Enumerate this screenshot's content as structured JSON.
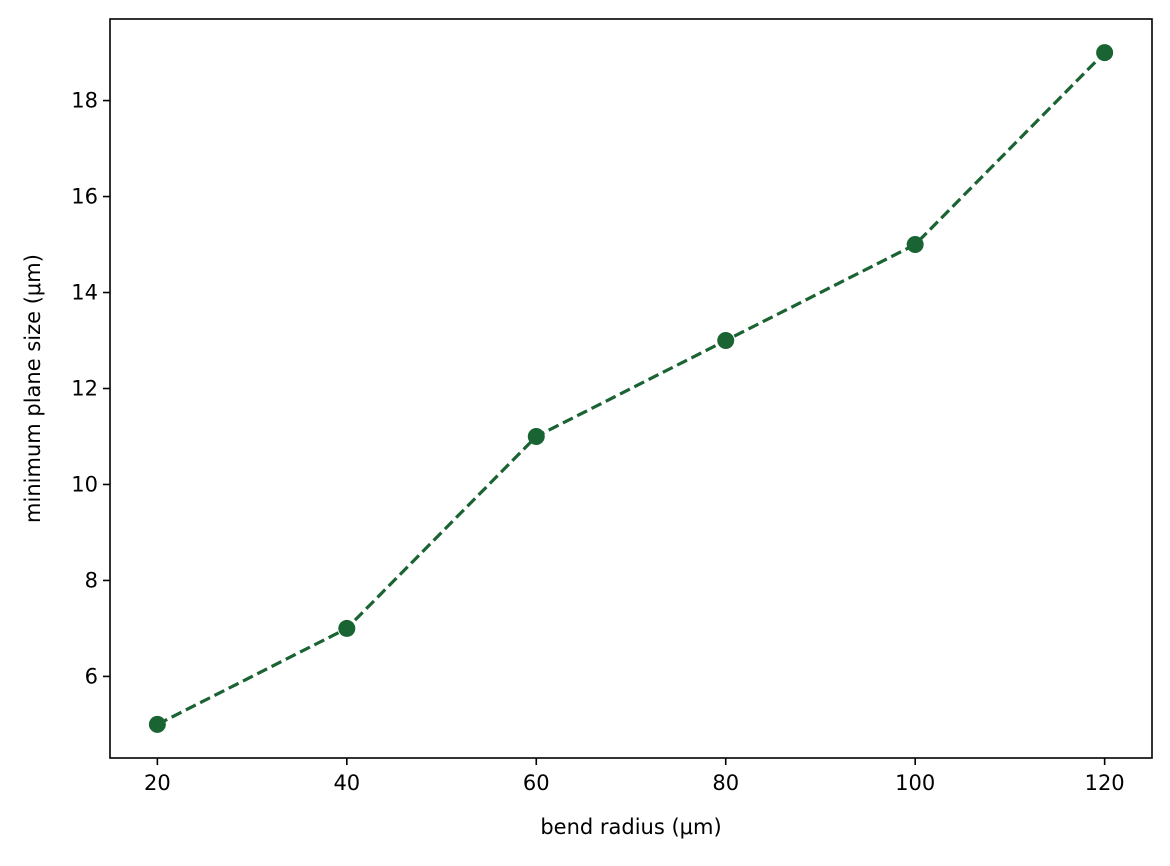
{
  "chart_data": {
    "type": "line",
    "title": "",
    "xlabel": "bend radius (μm)",
    "ylabel": "minimum plane size (μm)",
    "x": [
      20,
      40,
      60,
      80,
      100,
      120
    ],
    "series": [
      {
        "values": [
          5,
          7,
          11,
          13,
          15,
          19
        ]
      }
    ],
    "xlim": [
      15,
      125
    ],
    "ylim": [
      4.3,
      19.7
    ],
    "xticks": [
      20,
      40,
      60,
      80,
      100,
      120
    ],
    "yticks": [
      6,
      8,
      10,
      12,
      14,
      16,
      18
    ],
    "grid": false,
    "line_style": "dashed",
    "marker": "circle",
    "color": "#1a6332"
  }
}
